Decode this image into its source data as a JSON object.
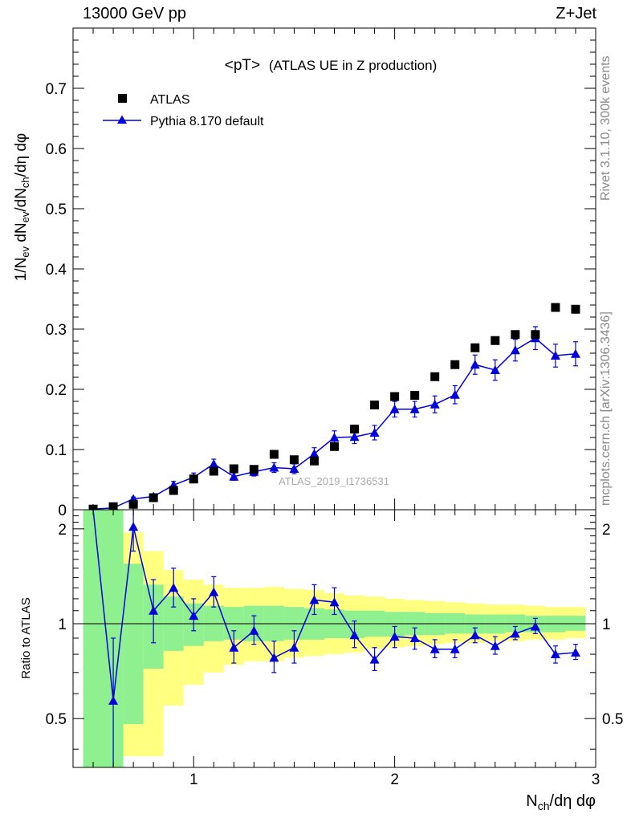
{
  "header": {
    "left": "13000 GeV pp",
    "right": "Z+Jet"
  },
  "side": {
    "rivet": "Rivet 3.1.10,  300k events",
    "mcplots": "mcplots.cern.ch [arXiv:1306.3436]"
  },
  "colors": {
    "data": "#000000",
    "mc": "#0000dd",
    "band_inner": "#8ff08f",
    "band_outer": "#ffff80"
  },
  "chart_data": [
    {
      "type": "scatter",
      "title": "<pT> (ATLAS UE in Z production)",
      "title_main": "<pT>",
      "title_sub": "(ATLAS UE in Z production)",
      "ylabel": "1/N_ev dN_ev/dN_ch/dη dφ",
      "watermark": "ATLAS_2019_I1736531",
      "xlim": [
        0.4,
        3.0
      ],
      "ylim": [
        0,
        0.8
      ],
      "yticks": [
        0,
        0.1,
        0.2,
        0.3,
        0.4,
        0.5,
        0.6,
        0.7
      ],
      "ytick_labels": [
        "0",
        "0.1",
        "0.2",
        "0.3",
        "0.4",
        "0.5",
        "0.6",
        "0.7"
      ],
      "legend_position": "top-left",
      "series": [
        {
          "name": "ATLAS",
          "marker": "square",
          "x": [
            0.5,
            0.6,
            0.7,
            0.8,
            0.9,
            1.0,
            1.1,
            1.2,
            1.3,
            1.4,
            1.5,
            1.6,
            1.7,
            1.8,
            1.9,
            2.0,
            2.1,
            2.2,
            2.3,
            2.4,
            2.5,
            2.6,
            2.7,
            2.8,
            2.9
          ],
          "y": [
            0.001,
            0.005,
            0.009,
            0.02,
            0.032,
            0.051,
            0.064,
            0.068,
            0.067,
            0.092,
            0.083,
            0.081,
            0.105,
            0.134,
            0.174,
            0.188,
            0.19,
            0.221,
            0.241,
            0.269,
            0.281,
            0.291,
            0.291,
            0.336,
            0.333
          ]
        },
        {
          "name": "Pythia 8.170 default",
          "marker": "triangle",
          "x": [
            0.5,
            0.6,
            0.7,
            0.8,
            0.9,
            1.0,
            1.1,
            1.2,
            1.3,
            1.4,
            1.5,
            1.6,
            1.7,
            1.8,
            1.9,
            2.0,
            2.1,
            2.2,
            2.3,
            2.4,
            2.5,
            2.6,
            2.7,
            2.8,
            2.9
          ],
          "y": [
            0.001,
            0.003,
            0.018,
            0.022,
            0.041,
            0.054,
            0.076,
            0.055,
            0.063,
            0.07,
            0.068,
            0.093,
            0.12,
            0.121,
            0.128,
            0.167,
            0.167,
            0.175,
            0.191,
            0.241,
            0.232,
            0.265,
            0.285,
            0.256,
            0.259
          ],
          "yerr": [
            0.001,
            0.001,
            0.003,
            0.004,
            0.006,
            0.007,
            0.008,
            0.006,
            0.007,
            0.008,
            0.008,
            0.01,
            0.011,
            0.011,
            0.012,
            0.013,
            0.013,
            0.014,
            0.015,
            0.016,
            0.017,
            0.018,
            0.019,
            0.019,
            0.02
          ]
        }
      ]
    },
    {
      "type": "line",
      "ylabel": "Ratio to ATLAS",
      "xlabel": "N_ch/dη dφ",
      "xlim": [
        0.4,
        3.0
      ],
      "ylim": [
        0.35,
        2.3
      ],
      "xticks": [
        1,
        2,
        3
      ],
      "xtick_labels": [
        "1",
        "2",
        "3"
      ],
      "yticks": [
        0.5,
        1,
        2
      ],
      "ytick_labels": [
        "0.5",
        "1",
        "2"
      ],
      "reference": 1,
      "bands": {
        "x_edges": [
          0.45,
          0.55,
          0.65,
          0.75,
          0.85,
          0.95,
          1.05,
          1.15,
          1.25,
          1.35,
          1.45,
          1.55,
          1.65,
          1.75,
          1.85,
          1.95,
          2.05,
          2.15,
          2.25,
          2.35,
          2.45,
          2.55,
          2.65,
          2.75,
          2.85,
          2.95
        ],
        "inner_lo": [
          0.35,
          0.35,
          0.48,
          0.72,
          0.82,
          0.85,
          0.88,
          0.89,
          0.88,
          0.88,
          0.89,
          0.89,
          0.9,
          0.9,
          0.91,
          0.91,
          0.92,
          0.92,
          0.93,
          0.93,
          0.93,
          0.94,
          0.94,
          0.94,
          0.95
        ],
        "inner_hi": [
          2.3,
          2.3,
          1.55,
          1.33,
          1.22,
          1.16,
          1.14,
          1.13,
          1.14,
          1.14,
          1.13,
          1.12,
          1.11,
          1.1,
          1.1,
          1.09,
          1.09,
          1.08,
          1.08,
          1.07,
          1.07,
          1.07,
          1.06,
          1.06,
          1.06
        ],
        "outer_lo": [
          0.35,
          0.35,
          0.38,
          0.38,
          0.55,
          0.64,
          0.7,
          0.74,
          0.76,
          0.76,
          0.78,
          0.79,
          0.8,
          0.81,
          0.83,
          0.84,
          0.85,
          0.86,
          0.87,
          0.87,
          0.88,
          0.88,
          0.89,
          0.89,
          0.9
        ],
        "outer_hi": [
          2.3,
          2.3,
          1.95,
          1.7,
          1.48,
          1.38,
          1.33,
          1.3,
          1.3,
          1.31,
          1.29,
          1.28,
          1.25,
          1.23,
          1.22,
          1.2,
          1.19,
          1.18,
          1.17,
          1.16,
          1.15,
          1.15,
          1.14,
          1.13,
          1.13
        ]
      },
      "series": [
        {
          "name": "Pythia 8.170 default",
          "x": [
            0.5,
            0.6,
            0.7,
            0.8,
            0.9,
            1.0,
            1.1,
            1.2,
            1.3,
            1.4,
            1.5,
            1.6,
            1.7,
            1.8,
            1.9,
            2.0,
            2.1,
            2.2,
            2.3,
            2.4,
            2.5,
            2.6,
            2.7,
            2.8,
            2.9
          ],
          "y": [
            2.6,
            0.57,
            2.03,
            1.1,
            1.3,
            1.06,
            1.26,
            0.84,
            0.95,
            0.78,
            0.84,
            1.19,
            1.17,
            0.92,
            0.77,
            0.91,
            0.9,
            0.83,
            0.83,
            0.92,
            0.85,
            0.93,
            0.98,
            0.8,
            0.81
          ],
          "ylo": [
            2.3,
            0.33,
            1.7,
            0.87,
            1.13,
            0.95,
            1.13,
            0.75,
            0.86,
            0.7,
            0.75,
            1.07,
            1.07,
            0.84,
            0.71,
            0.84,
            0.83,
            0.78,
            0.78,
            0.87,
            0.8,
            0.89,
            0.93,
            0.75,
            0.77
          ],
          "yhi": [
            2.3,
            0.9,
            2.3,
            1.38,
            1.5,
            1.2,
            1.41,
            0.95,
            1.06,
            0.88,
            0.95,
            1.33,
            1.3,
            1.02,
            0.84,
            0.98,
            0.97,
            0.89,
            0.89,
            0.97,
            0.91,
            0.98,
            1.04,
            0.85,
            0.86
          ]
        }
      ]
    }
  ]
}
